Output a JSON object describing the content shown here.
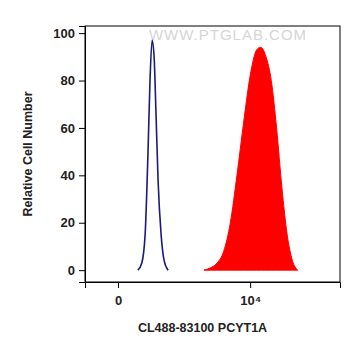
{
  "chart_data": {
    "type": "line",
    "x_label": "CL488-83100 PCYT1A",
    "y_label": "Relative Cell Number",
    "annotations": [
      "WWW.PTGLAB.COM"
    ],
    "xlim": [
      -2500,
      16800
    ],
    "xticks": [
      0,
      {
        "value": 10000,
        "label": "10⁴"
      }
    ],
    "ylim": [
      -5,
      103
    ],
    "yticks": [
      0,
      20,
      40,
      60,
      80,
      100
    ],
    "grid": false,
    "series": [
      {
        "type": "line",
        "color": "#1a1a80",
        "x": [
          1500,
          1800,
          2050,
          2270,
          2420,
          2580,
          2730,
          2880,
          3030,
          3260,
          3490,
          3790
        ],
        "values": [
          0,
          3,
          15,
          50,
          80,
          97,
          90,
          65,
          38,
          15,
          4,
          0
        ]
      },
      {
        "type": "area",
        "color": "#ff0000",
        "x": [
          6500,
          7000,
          7500,
          8000,
          8500,
          9000,
          9500,
          10000,
          10500,
          10800,
          11200,
          11600,
          12000,
          12400,
          12800,
          13200,
          13600
        ],
        "values": [
          0,
          1,
          3,
          8,
          20,
          40,
          62,
          82,
          93,
          94,
          90,
          80,
          60,
          35,
          15,
          4,
          0
        ]
      }
    ]
  }
}
